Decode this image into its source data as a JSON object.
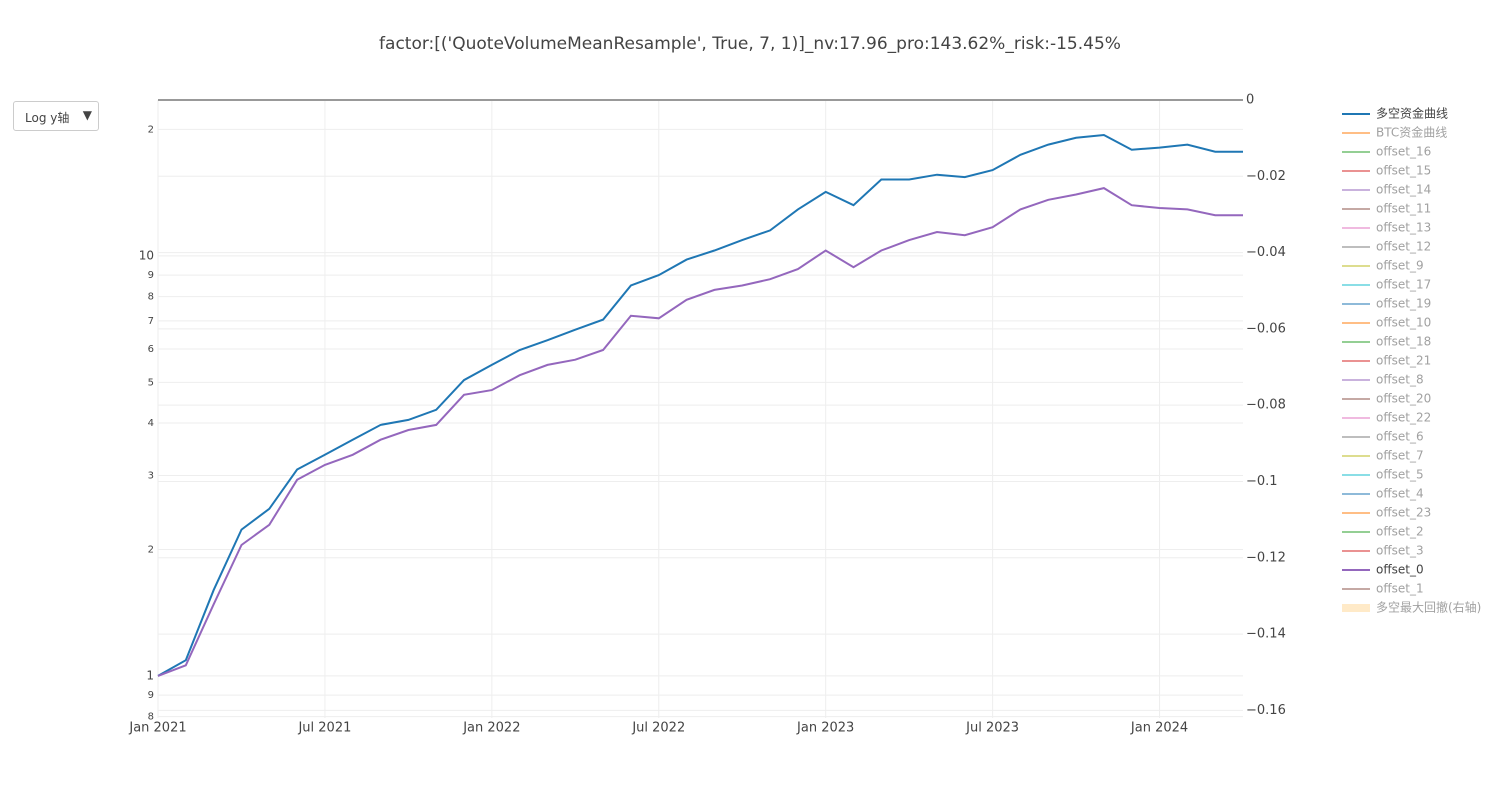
{
  "dropdown": {
    "label": "Log y轴"
  },
  "chart_data": {
    "type": "line",
    "title": "factor:[('QuoteVolumeMeanResample', True, 7, 1)]_nv:17.96_pro:143.62%_risk:-15.45%",
    "log_y": true,
    "grid": true,
    "x": [
      "2021-01",
      "2021-02",
      "2021-03",
      "2021-04",
      "2021-05",
      "2021-06",
      "2021-07",
      "2021-08",
      "2021-09",
      "2021-10",
      "2021-11",
      "2021-12",
      "2022-01",
      "2022-02",
      "2022-03",
      "2022-04",
      "2022-05",
      "2022-06",
      "2022-07",
      "2022-08",
      "2022-09",
      "2022-10",
      "2022-11",
      "2022-12",
      "2023-01",
      "2023-02",
      "2023-03",
      "2023-04",
      "2023-05",
      "2023-06",
      "2023-07",
      "2023-08",
      "2023-09",
      "2023-10",
      "2023-11",
      "2023-12",
      "2024-01",
      "2024-02",
      "2024-03",
      "2024-04"
    ],
    "xlim": [
      "2021-01",
      "2024-04"
    ],
    "xticks": [
      {
        "value": "2021-01",
        "label": "Jan 2021"
      },
      {
        "value": "2021-07",
        "label": "Jul 2021"
      },
      {
        "value": "2022-01",
        "label": "Jan 2022"
      },
      {
        "value": "2022-07",
        "label": "Jul 2022"
      },
      {
        "value": "2023-01",
        "label": "Jan 2023"
      },
      {
        "value": "2023-07",
        "label": "Jul 2023"
      },
      {
        "value": "2024-01",
        "label": "Jan 2024"
      }
    ],
    "ylim": [
      0.794,
      23.5
    ],
    "yticks": [
      {
        "value": 20,
        "label": "2"
      },
      10,
      9,
      8,
      7,
      6,
      5,
      4,
      3,
      2,
      1,
      {
        "value": 0.9,
        "label": "9"
      },
      {
        "value": 0.8,
        "label": "8"
      }
    ],
    "y2lim": [
      -0.162,
      0
    ],
    "y2ticks": [
      0,
      {
        "value": -0.02,
        "label": "−0.02"
      },
      {
        "value": -0.04,
        "label": "−0.04"
      },
      {
        "value": -0.06,
        "label": "−0.06"
      },
      {
        "value": -0.08,
        "label": "−0.08"
      },
      {
        "value": -0.1,
        "label": "−0.1"
      },
      {
        "value": -0.12,
        "label": "−0.12"
      },
      {
        "value": -0.14,
        "label": "−0.14"
      },
      {
        "value": -0.16,
        "label": "−0.16"
      }
    ],
    "series": [
      {
        "name": "多空资金曲线",
        "color": "#1f77b4",
        "visible": true,
        "values": [
          1.0,
          1.09,
          1.6,
          2.23,
          2.5,
          3.1,
          3.36,
          3.65,
          3.96,
          4.07,
          4.3,
          5.06,
          5.5,
          5.97,
          6.3,
          6.67,
          7.05,
          8.5,
          9.0,
          9.8,
          10.3,
          10.9,
          11.5,
          12.9,
          14.2,
          13.2,
          15.2,
          15.2,
          15.6,
          15.4,
          16.0,
          17.4,
          18.4,
          19.1,
          19.4,
          17.9,
          18.1,
          18.4,
          17.7,
          17.7
        ]
      },
      {
        "name": "BTC资金曲线",
        "color": "#ff7f0e",
        "visible": false
      },
      {
        "name": "offset_16",
        "color": "#2ca02c",
        "visible": false
      },
      {
        "name": "offset_15",
        "color": "#d62728",
        "visible": false
      },
      {
        "name": "offset_14",
        "color": "#9467bd",
        "visible": false
      },
      {
        "name": "offset_11",
        "color": "#8c564b",
        "visible": false
      },
      {
        "name": "offset_13",
        "color": "#e377c2",
        "visible": false
      },
      {
        "name": "offset_12",
        "color": "#7f7f7f",
        "visible": false
      },
      {
        "name": "offset_9",
        "color": "#bcbd22",
        "visible": false
      },
      {
        "name": "offset_17",
        "color": "#17becf",
        "visible": false
      },
      {
        "name": "offset_19",
        "color": "#1f77b4",
        "visible": false
      },
      {
        "name": "offset_10",
        "color": "#ff7f0e",
        "visible": false
      },
      {
        "name": "offset_18",
        "color": "#2ca02c",
        "visible": false
      },
      {
        "name": "offset_21",
        "color": "#d62728",
        "visible": false
      },
      {
        "name": "offset_8",
        "color": "#9467bd",
        "visible": false
      },
      {
        "name": "offset_20",
        "color": "#8c564b",
        "visible": false
      },
      {
        "name": "offset_22",
        "color": "#e377c2",
        "visible": false
      },
      {
        "name": "offset_6",
        "color": "#7f7f7f",
        "visible": false
      },
      {
        "name": "offset_7",
        "color": "#bcbd22",
        "visible": false
      },
      {
        "name": "offset_5",
        "color": "#17becf",
        "visible": false
      },
      {
        "name": "offset_4",
        "color": "#1f77b4",
        "visible": false
      },
      {
        "name": "offset_23",
        "color": "#ff7f0e",
        "visible": false
      },
      {
        "name": "offset_2",
        "color": "#2ca02c",
        "visible": false
      },
      {
        "name": "offset_3",
        "color": "#d62728",
        "visible": false
      },
      {
        "name": "offset_0",
        "color": "#9467bd",
        "visible": true,
        "values": [
          1.0,
          1.06,
          1.48,
          2.05,
          2.29,
          2.93,
          3.18,
          3.36,
          3.65,
          3.85,
          3.96,
          4.67,
          4.79,
          5.2,
          5.5,
          5.66,
          5.97,
          7.2,
          7.1,
          7.86,
          8.3,
          8.5,
          8.8,
          9.3,
          10.3,
          9.4,
          10.3,
          10.9,
          11.4,
          11.2,
          11.7,
          12.9,
          13.6,
          14.0,
          14.5,
          13.2,
          13.0,
          12.9,
          12.5,
          12.5
        ]
      },
      {
        "name": "offset_1",
        "color": "#8c564b",
        "visible": false
      },
      {
        "name": "多空最大回撤(右轴)",
        "color": "#ffd591",
        "visible": false,
        "axis": "y2",
        "fill": true
      }
    ]
  }
}
